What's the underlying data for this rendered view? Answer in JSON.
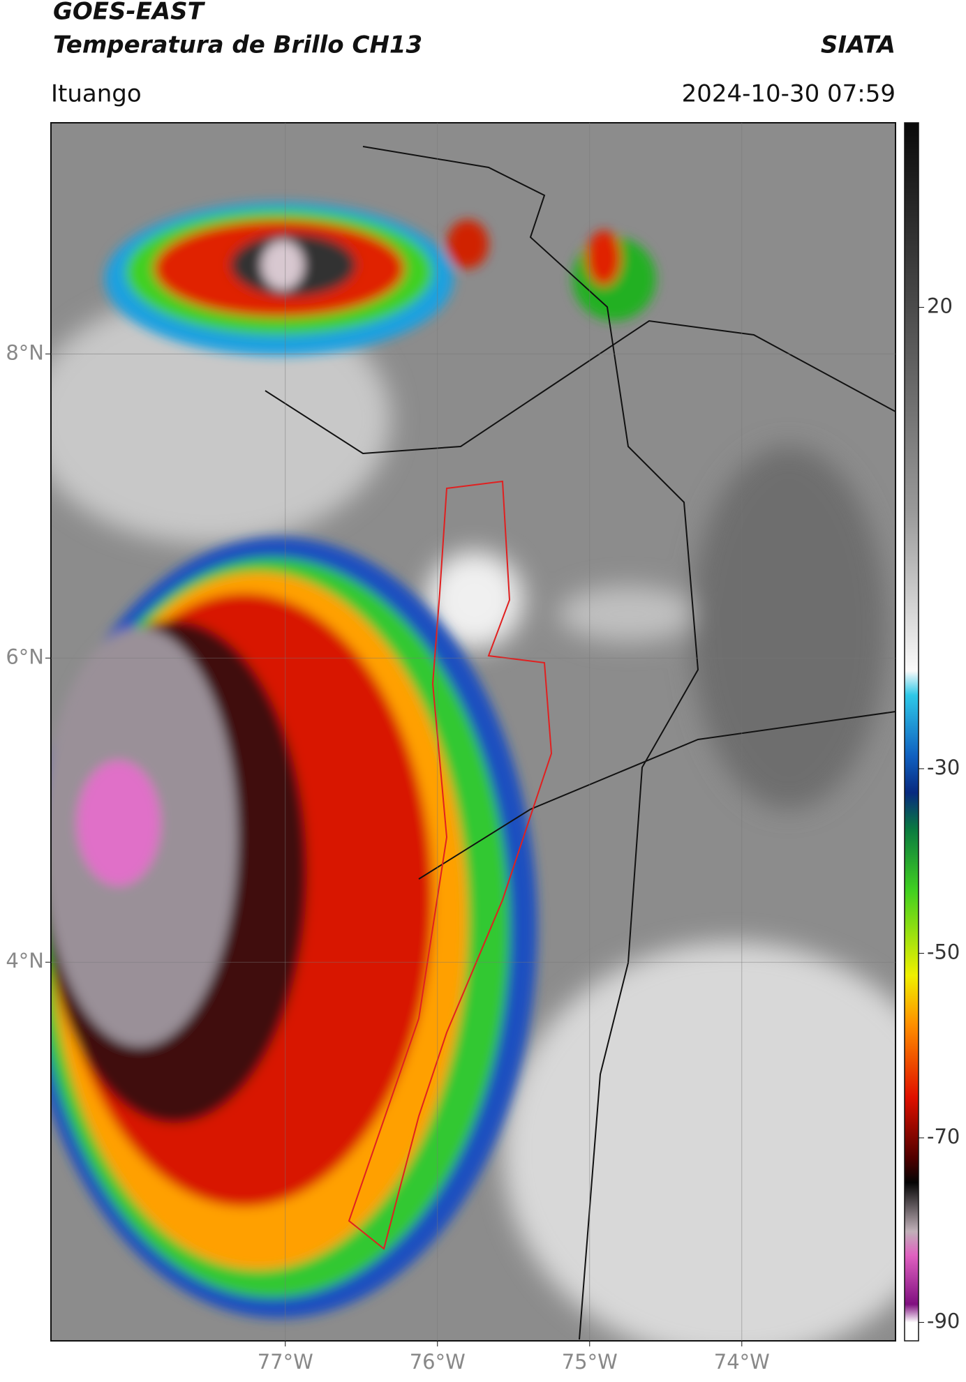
{
  "chart_data": {
    "type": "map",
    "title": "GOES-EAST",
    "subtitle": "Temperatura de Brillo CH13",
    "source": "SIATA",
    "location": "Ituango",
    "datetime": "2024-10-30 07:59",
    "xlim": [
      -78.54,
      -72.99
    ],
    "ylim": [
      1.51,
      9.52
    ],
    "xticks": [
      {
        "value": -77,
        "label": "77°W"
      },
      {
        "value": -76,
        "label": "76°W"
      },
      {
        "value": -75,
        "label": "75°W"
      },
      {
        "value": -74,
        "label": "74°W"
      }
    ],
    "yticks": [
      {
        "value": 8,
        "label": "8°N"
      },
      {
        "value": 6,
        "label": "6°N"
      },
      {
        "value": 4,
        "label": "4°N"
      }
    ],
    "colorbar": {
      "clim": [
        -92,
        40
      ],
      "ticks": [
        20,
        -30,
        -50,
        -70,
        -90
      ]
    },
    "grid": true
  }
}
